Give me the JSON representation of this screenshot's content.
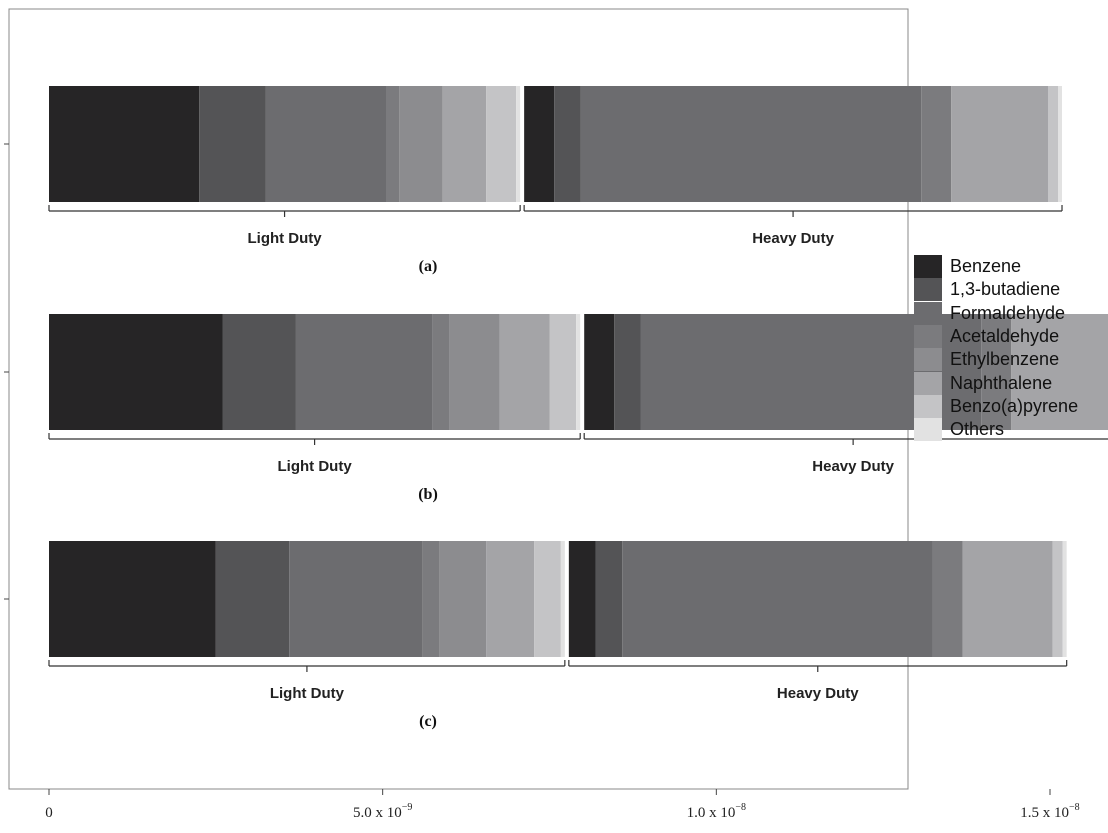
{
  "chart_data": {
    "type": "bar",
    "orientation": "horizontal",
    "stacked": true,
    "xlim": [
      0,
      1.5e-08
    ],
    "grid": false,
    "legend_position": "right",
    "x_ticks": [
      {
        "value": 0,
        "mantissa": "0",
        "exponent": ""
      },
      {
        "value": 5e-09,
        "mantissa": "5.0 x 10",
        "exponent": "−9"
      },
      {
        "value": 1e-08,
        "mantissa": "1.0 x 10",
        "exponent": "−8"
      },
      {
        "value": 1.5e-08,
        "mantissa": "1.5 x 10",
        "exponent": "−8"
      }
    ],
    "species": [
      "Benzene",
      "1,3-butadiene",
      "Formaldehyde",
      "Acetaldehyde",
      "Ethylbenzene",
      "Naphthalene",
      "Benzo(a)pyrene",
      "Others"
    ],
    "colors": [
      "#262526",
      "#545456",
      "#6c6c6f",
      "#7b7b7e",
      "#8c8c8f",
      "#a4a4a7",
      "#c4c4c6",
      "#e2e2e2"
    ],
    "panels": [
      {
        "label": "(a)",
        "groups": [
          {
            "name": "Light Duty",
            "values": [
              2.25e-09,
              1e-09,
              1.8e-09,
              2e-10,
              6.5e-10,
              6.5e-10,
              4.5e-10,
              6e-11
            ]
          },
          {
            "name": "Heavy Duty",
            "values": [
              4.5e-10,
              4e-10,
              5.1e-09,
              4.5e-10,
              0.0,
              1.45e-09,
              1.5e-10,
              6e-11
            ]
          }
        ]
      },
      {
        "label": "(b)",
        "groups": [
          {
            "name": "Light Duty",
            "values": [
              2.6e-09,
              1.1e-09,
              2.05e-09,
              2.5e-10,
              7.5e-10,
              7.5e-10,
              4e-10,
              6e-11
            ]
          },
          {
            "name": "Heavy Duty",
            "values": [
              4.5e-10,
              4e-10,
              5.1e-09,
              4.5e-10,
              0.0,
              1.45e-09,
              1.5e-10,
              6e-11
            ]
          }
        ]
      },
      {
        "label": "(c)",
        "groups": [
          {
            "name": "Light Duty",
            "values": [
              2.5e-09,
              1.1e-09,
              2e-09,
              2.5e-10,
              7e-10,
              7.2e-10,
              4e-10,
              6e-11
            ]
          },
          {
            "name": "Heavy Duty",
            "values": [
              4e-10,
              4e-10,
              4.65e-09,
              4.5e-10,
              0.0,
              1.35e-09,
              1.5e-10,
              6e-11
            ]
          }
        ]
      }
    ]
  }
}
